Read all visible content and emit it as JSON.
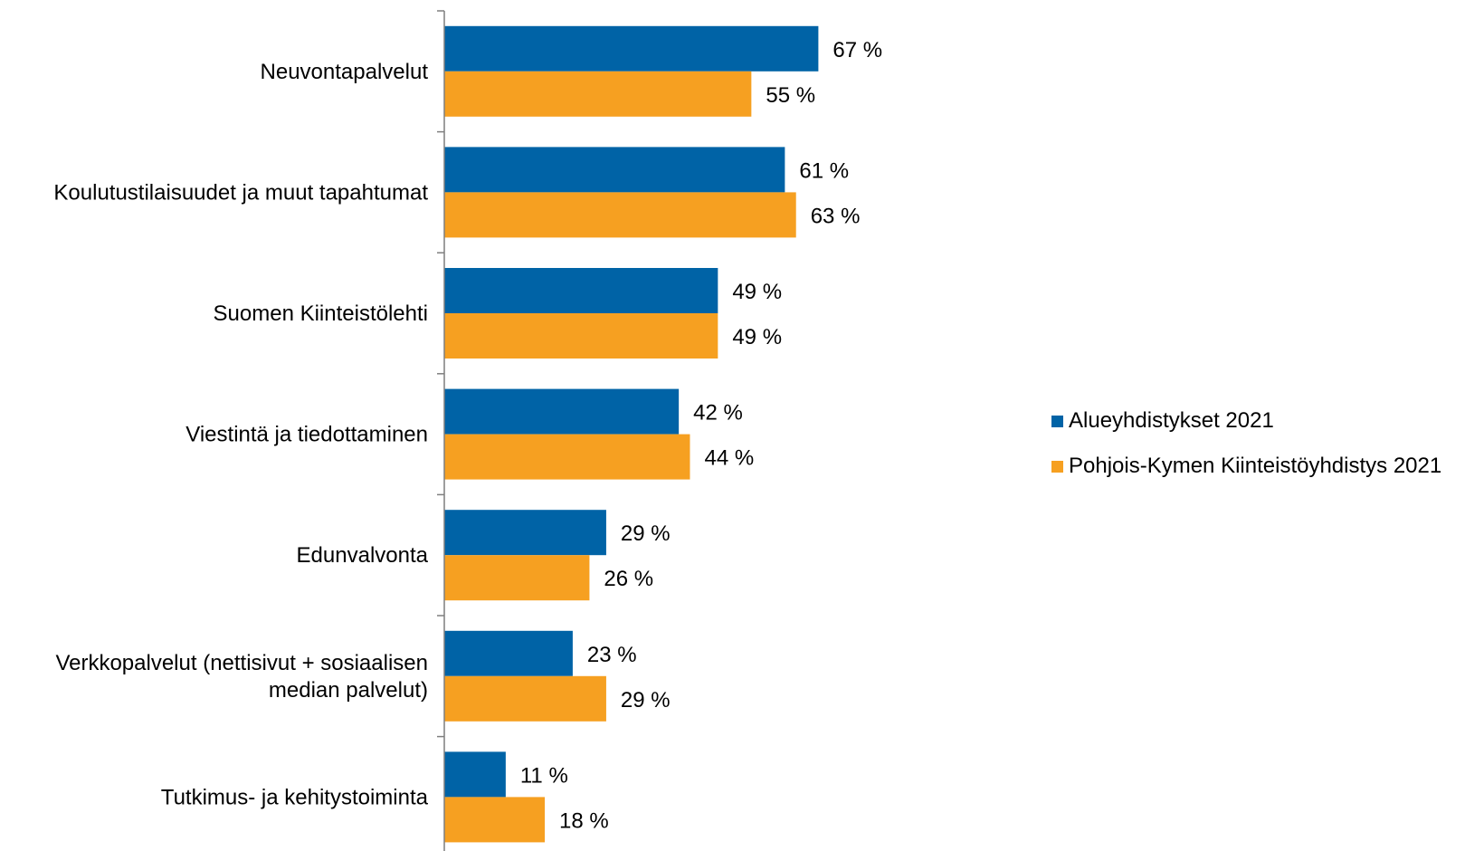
{
  "colors": {
    "series_1": "#0063a6",
    "series_2": "#f6a021",
    "axis": "#7f7f7f"
  },
  "legend": {
    "position": "right",
    "items": [
      {
        "label": "Alueyhdistykset 2021",
        "color": "#0063a6"
      },
      {
        "label": "Pohjois-Kymen Kiinteistöyhdistys 2021",
        "color": "#f6a021"
      }
    ]
  },
  "chart_data": {
    "type": "bar",
    "orientation": "horizontal",
    "title": "",
    "xlabel": "",
    "ylabel": "",
    "xlim": [
      0,
      100
    ],
    "grid": false,
    "value_suffix": " %",
    "categories": [
      [
        "Neuvontapalvelut"
      ],
      [
        "Koulutustilaisuudet ja muut tapahtumat"
      ],
      [
        "Suomen Kiinteistölehti"
      ],
      [
        "Viestintä ja tiedottaminen"
      ],
      [
        "Edunvalvonta"
      ],
      [
        "Verkkopalvelut (nettisivut + sosiaalisen",
        "median palvelut)"
      ],
      [
        "Tutkimus- ja kehitystoiminta"
      ]
    ],
    "series": [
      {
        "name": "Alueyhdistykset 2021",
        "values": [
          67,
          61,
          49,
          42,
          29,
          23,
          11
        ]
      },
      {
        "name": "Pohjois-Kymen Kiinteistöyhdistys 2021",
        "values": [
          55,
          63,
          49,
          44,
          26,
          29,
          18
        ]
      }
    ]
  }
}
